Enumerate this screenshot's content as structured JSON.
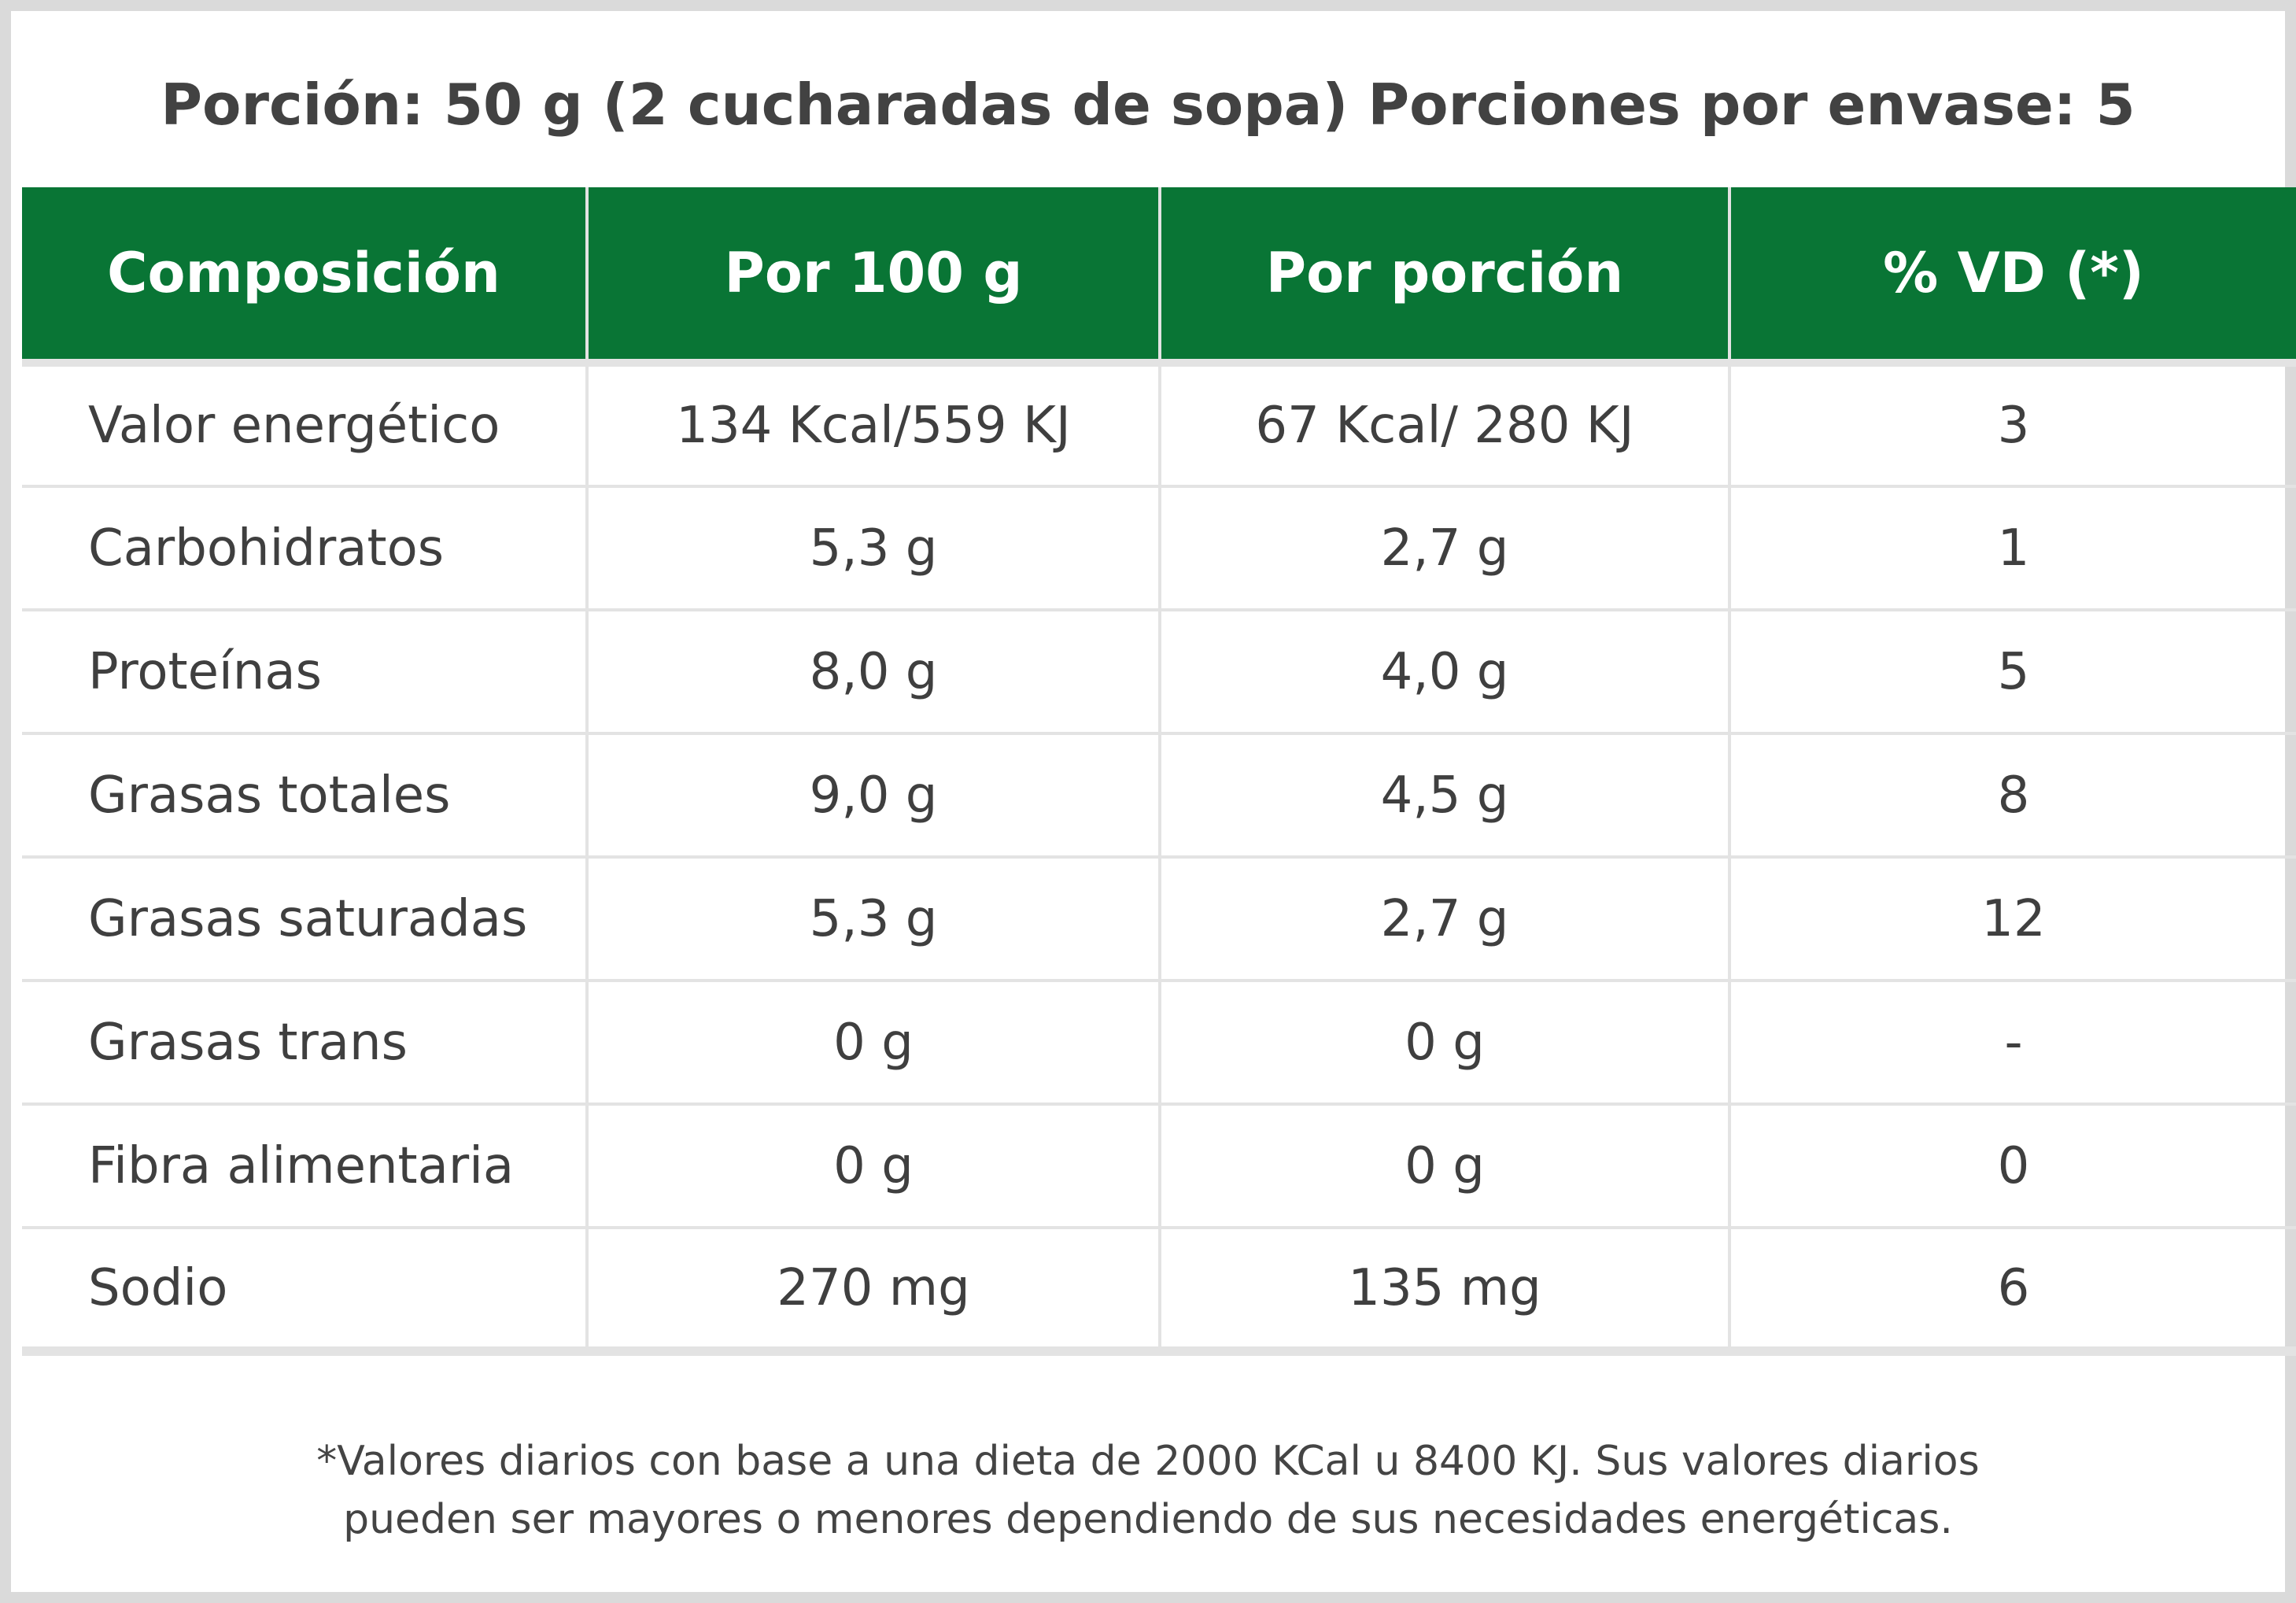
{
  "title": "Porción: 50 g (2 cucharadas de sopa) Porciones por envase: 5",
  "table": {
    "headers": [
      "Composición",
      "Por 100 g",
      "Por porción",
      "% VD (*)"
    ],
    "rows": [
      [
        "Valor energético",
        "134 Kcal/559 KJ",
        "67 Kcal/ 280 KJ",
        "3"
      ],
      [
        "Carbohidratos",
        "5,3 g",
        "2,7 g",
        "1"
      ],
      [
        "Proteínas",
        "8,0 g",
        "4,0 g",
        "5"
      ],
      [
        "Grasas totales",
        "9,0 g",
        "4,5 g",
        "8"
      ],
      [
        "Grasas saturadas",
        "5,3 g",
        "2,7 g",
        "12"
      ],
      [
        "Grasas trans",
        "0 g",
        "0 g",
        "-"
      ],
      [
        "Fibra alimentaria",
        "0 g",
        "0 g",
        "0"
      ],
      [
        "Sodio",
        "270 mg",
        "135 mg",
        "6"
      ]
    ]
  },
  "footnote": {
    "line1": "*Valores diarios con base a una dieta de 2000 KCal u 8400 KJ. Sus valores diarios",
    "line2": "pueden ser mayores o menores dependiendo de sus necesidades energéticas."
  },
  "colors": {
    "header_green": "#097535",
    "border_gray": "#dadada",
    "text": "#3f3f3f"
  }
}
